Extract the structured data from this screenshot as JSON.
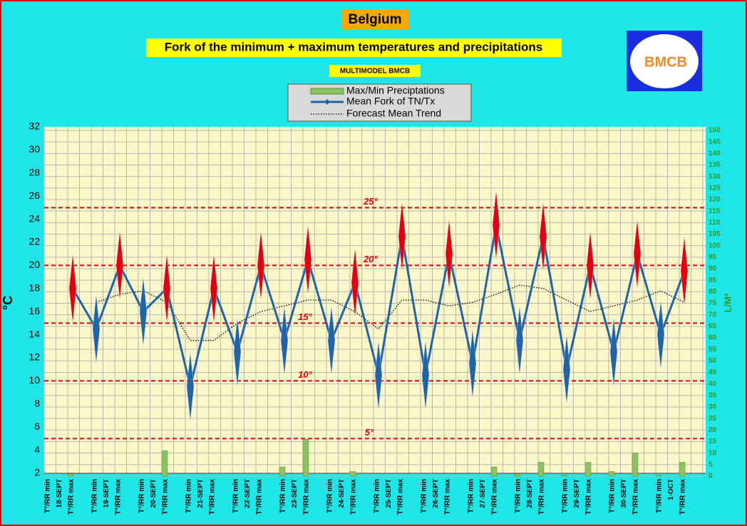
{
  "chart_data": {
    "type": "fork",
    "title": "Belgium",
    "subtitle": "Fork of the minimum + maximum temperatures and precipitations",
    "source": "MULTIMODEL BMCB",
    "logo": "BMCB",
    "ylabel": "°C",
    "y2label": "L/M²",
    "categories": [
      "T°/RR min",
      "T°/RR max",
      "T°/RR min",
      "T°/RR max",
      "T°/RR min",
      "T°/RR max",
      "T°/RR min",
      "T°/RR max",
      "T°/RR min",
      "T°/RR max",
      "T°/RR min",
      "T°/RR max",
      "T°/RR min",
      "T°/RR max",
      "T°/RR min",
      "T°/RR max",
      "T°/RR min",
      "T°/RR max",
      "T°/RR min",
      "T°/RR max",
      "T°/RR min",
      "T°/RR max",
      "T°/RR min",
      "T°/RR max",
      "T°/RR min",
      "T°/RR max",
      "T°/RR min",
      "T°/RR max"
    ],
    "dates": [
      "18-SEPT",
      "19-SEPT",
      "20-SEPT",
      "21-SEPT",
      "22-SEPT",
      "23-SEPT",
      "24-SEPT",
      "25-SEPT",
      "26-SEPT",
      "27-SEPT",
      "28-SEPT",
      "29-SEPT",
      "30-SEPT",
      "1-OCT"
    ],
    "series": [
      {
        "name": "Max/Min Preciptations",
        "color": "#8dc060",
        "axis": "y2",
        "values": [
          0,
          1,
          0,
          0,
          0,
          11,
          0,
          0,
          0,
          0,
          4,
          16,
          0,
          2,
          0,
          0,
          0,
          0,
          0,
          4,
          1,
          6,
          0.5,
          6,
          2,
          10,
          0.5,
          6
        ]
      },
      {
        "name": "Mean Fork of TN/Tx",
        "color": "#1f64a8",
        "max_color": "#e00010",
        "values": [
          null,
          18,
          14.5,
          20,
          16,
          18,
          9.5,
          18,
          12.5,
          20,
          13.5,
          20.5,
          13.5,
          18.5,
          10.5,
          22.5,
          10.5,
          21,
          11.5,
          23.5,
          13.5,
          22.5,
          11,
          20,
          12.5,
          21,
          14,
          19.5
        ]
      },
      {
        "name": "Forecast Mean Trend",
        "color": "#000000",
        "values": [
          null,
          null,
          16.8,
          17.5,
          17.8,
          16.8,
          13.5,
          13.5,
          15,
          16,
          16.5,
          17,
          17,
          16,
          14.5,
          17,
          17,
          16.5,
          16.8,
          17.5,
          18.3,
          18,
          17,
          16,
          16.5,
          17,
          17.8,
          16.8
        ]
      }
    ],
    "ref_lines": [
      {
        "value": 25,
        "label": "25°"
      },
      {
        "value": 20,
        "label": "20°"
      },
      {
        "value": 15,
        "label": "15°"
      },
      {
        "value": 10,
        "label": "10°"
      },
      {
        "value": 5,
        "label": "5°"
      }
    ],
    "ref_color": "#e00010",
    "ylim": [
      2,
      32
    ],
    "yticks": [
      2,
      4,
      6,
      8,
      10,
      12,
      14,
      16,
      18,
      20,
      22,
      24,
      26,
      28,
      30,
      32
    ],
    "y2lim": [
      0,
      150
    ],
    "y2ticks": [
      0,
      5,
      10,
      15,
      20,
      25,
      30,
      35,
      40,
      45,
      50,
      55,
      60,
      65,
      70,
      75,
      80,
      85,
      90,
      95,
      100,
      105,
      110,
      115,
      120,
      125,
      130,
      135,
      140,
      145,
      150
    ],
    "grid": true
  }
}
